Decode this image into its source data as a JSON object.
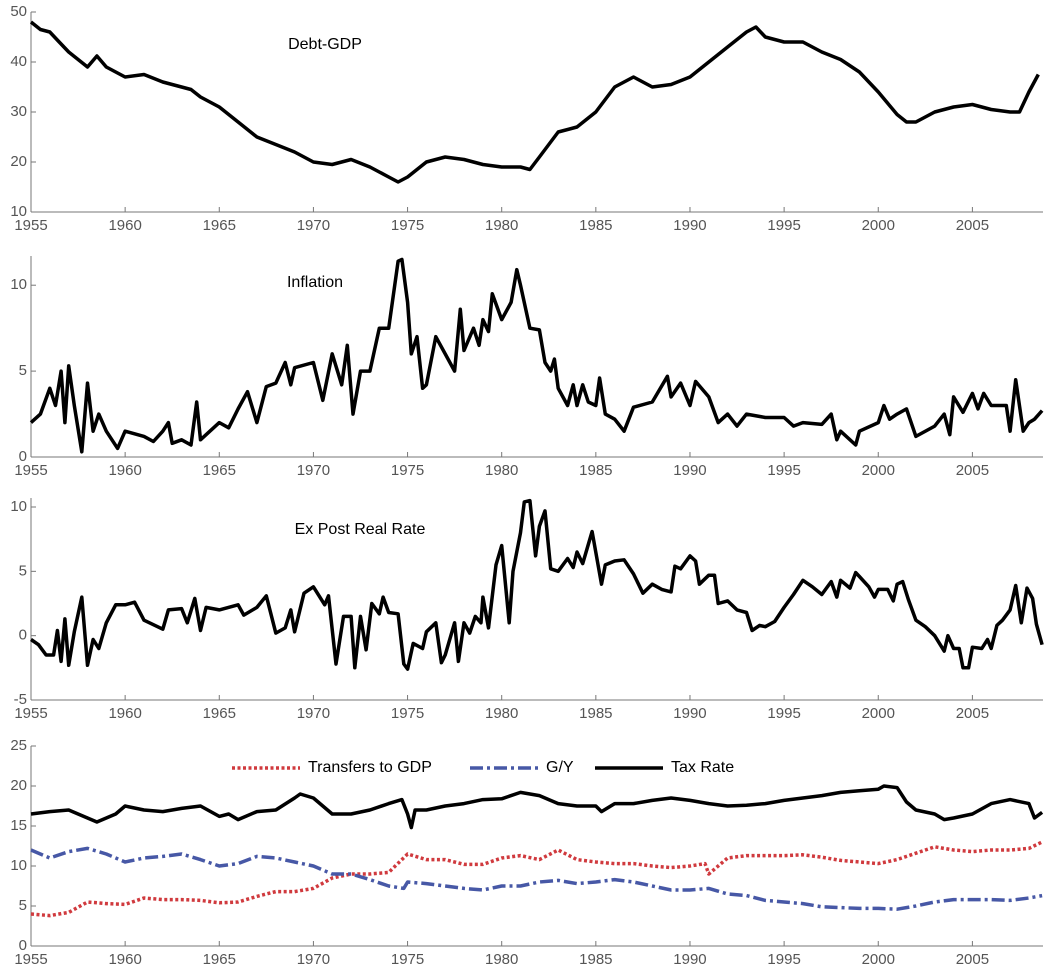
{
  "chart_data": [
    {
      "type": "line",
      "annotation": "Debt-GDP",
      "color": "#000000",
      "x": [
        1955,
        1955.5,
        1956,
        1956.5,
        1957,
        1957.5,
        1958,
        1958.5,
        1959,
        1959.5,
        1960,
        1961,
        1962,
        1963,
        1963.5,
        1964,
        1965,
        1966,
        1967,
        1968,
        1969,
        1970,
        1971,
        1972,
        1973,
        1974,
        1974.5,
        1975,
        1976,
        1977,
        1978,
        1979,
        1980,
        1981,
        1981.5,
        1982,
        1983,
        1984,
        1985,
        1986,
        1987,
        1988,
        1989,
        1990,
        1991,
        1992,
        1993,
        1993.5,
        1994,
        1995,
        1996,
        1997,
        1998,
        1999,
        2000,
        2001,
        2001.5,
        2002,
        2003,
        2004,
        2005,
        2006,
        2007,
        2007.5,
        2008,
        2008.5
      ],
      "values": [
        48,
        46.5,
        46,
        44,
        42,
        40.5,
        39,
        41.2,
        39,
        38,
        37,
        37.5,
        36,
        35,
        34.5,
        33,
        31,
        28,
        25,
        23.5,
        22,
        20,
        19.5,
        20.5,
        19,
        17,
        16,
        17,
        20,
        21,
        20.5,
        19.5,
        19,
        19,
        18.5,
        21,
        26,
        27,
        30,
        35,
        37,
        35,
        35.5,
        37,
        40,
        43,
        46,
        47,
        45,
        44,
        44,
        42,
        40.5,
        38,
        34,
        29.5,
        28,
        28,
        30,
        31,
        31.5,
        30.5,
        30,
        30,
        34,
        37.5
      ],
      "xlim": [
        1955,
        2008.75
      ],
      "xticks": [
        1955,
        1960,
        1965,
        1970,
        1975,
        1980,
        1985,
        1990,
        1995,
        2000,
        2005
      ],
      "ylim": [
        10,
        50
      ],
      "yticks": [
        10,
        20,
        30,
        40,
        50
      ]
    },
    {
      "type": "line",
      "annotation": "Inflation",
      "color": "#000000",
      "x": [
        1955,
        1955.5,
        1956,
        1956.3,
        1956.6,
        1956.8,
        1957,
        1957.3,
        1957.7,
        1958,
        1958.3,
        1958.6,
        1959,
        1959.6,
        1960,
        1961,
        1961.5,
        1962,
        1962.3,
        1962.5,
        1963,
        1963.5,
        1963.8,
        1964,
        1965,
        1965.5,
        1966,
        1966.5,
        1967,
        1967.5,
        1968,
        1968.5,
        1968.8,
        1969,
        1970,
        1970.5,
        1971,
        1971.5,
        1971.8,
        1972.1,
        1972.5,
        1973,
        1973.5,
        1974,
        1974.5,
        1974.7,
        1975,
        1975.2,
        1975.5,
        1975.8,
        1976,
        1976.5,
        1977,
        1977.5,
        1977.8,
        1978,
        1978.5,
        1978.8,
        1979,
        1979.3,
        1979.5,
        1980,
        1980.5,
        1980.8,
        1981,
        1981.5,
        1982,
        1982.3,
        1982.6,
        1982.8,
        1983,
        1983.5,
        1983.8,
        1984,
        1984.3,
        1984.6,
        1985,
        1985.2,
        1985.5,
        1986,
        1986.5,
        1987,
        1988,
        1988.8,
        1989,
        1989.5,
        1990,
        1990.3,
        1991,
        1991.5,
        1992,
        1992.5,
        1993,
        1994,
        1995,
        1995.5,
        1996,
        1997,
        1997.5,
        1997.8,
        1998,
        1998.8,
        1999,
        2000,
        2000.3,
        2000.6,
        2001,
        2001.5,
        2002,
        2003,
        2003.5,
        2003.8,
        2004,
        2004.5,
        2005,
        2005.3,
        2005.6,
        2006,
        2006.8,
        2007,
        2007.3,
        2007.7,
        2008,
        2008.3,
        2008.7
      ],
      "values": [
        2,
        2.5,
        4,
        3,
        5,
        2,
        5.3,
        3,
        0.3,
        4.3,
        1.5,
        2.5,
        1.5,
        0.5,
        1.5,
        1.2,
        0.9,
        1.5,
        2,
        0.8,
        1,
        0.7,
        3.2,
        1,
        2,
        1.7,
        2.8,
        3.8,
        2,
        4.1,
        4.3,
        5.5,
        4.2,
        5.2,
        5.5,
        3.3,
        6,
        4.2,
        6.5,
        2.5,
        5,
        5,
        7.5,
        7.5,
        11.4,
        11.5,
        9,
        6,
        7,
        4,
        4.2,
        7,
        6,
        5,
        8.6,
        6.2,
        7.5,
        6.5,
        8,
        7.3,
        9.5,
        8,
        9,
        10.9,
        10,
        7.5,
        7.4,
        5.5,
        5,
        5.7,
        4,
        3,
        4.2,
        3,
        4.2,
        3.2,
        3,
        4.6,
        2.5,
        2.2,
        1.5,
        2.9,
        3.2,
        4.7,
        3.5,
        4.3,
        3,
        4.4,
        3.5,
        2,
        2.5,
        1.8,
        2.5,
        2.3,
        2.3,
        1.8,
        2,
        1.9,
        2.5,
        1,
        1.5,
        0.7,
        1.5,
        2,
        3,
        2.2,
        2.5,
        2.8,
        1.2,
        1.8,
        2.5,
        1.3,
        3.5,
        2.6,
        3.7,
        2.8,
        3.7,
        3,
        3,
        1.5,
        4.5,
        1.5,
        2,
        2.2,
        2.7
      ],
      "xlim": [
        1955,
        2008.75
      ],
      "xticks": [
        1955,
        1960,
        1965,
        1970,
        1975,
        1980,
        1985,
        1990,
        1995,
        2000,
        2005
      ],
      "ylim": [
        0,
        11.7
      ],
      "yticks": [
        0,
        5,
        10
      ]
    },
    {
      "type": "line",
      "annotation": "Ex Post Real Rate",
      "color": "#000000",
      "x": [
        1955,
        1955.4,
        1955.8,
        1956.2,
        1956.4,
        1956.6,
        1956.8,
        1957,
        1957.3,
        1957.7,
        1958,
        1958.3,
        1958.6,
        1959,
        1959.5,
        1960,
        1960.5,
        1961,
        1962,
        1962.3,
        1963,
        1963.3,
        1963.7,
        1964,
        1964.3,
        1965,
        1966,
        1966.3,
        1967,
        1967.5,
        1968,
        1968.5,
        1968.8,
        1969,
        1969.5,
        1970,
        1970.6,
        1970.8,
        1971.2,
        1971.6,
        1972,
        1972.2,
        1972.5,
        1972.8,
        1973.1,
        1973.5,
        1973.7,
        1974,
        1974.5,
        1974.8,
        1975,
        1975.3,
        1975.8,
        1976,
        1976.5,
        1976.8,
        1977,
        1977.5,
        1977.7,
        1978,
        1978.3,
        1978.6,
        1978.9,
        1979,
        1979.3,
        1979.7,
        1980,
        1980.4,
        1980.6,
        1981,
        1981.2,
        1981.5,
        1981.8,
        1982,
        1982.3,
        1982.6,
        1983,
        1983.5,
        1983.8,
        1984,
        1984.3,
        1984.8,
        1985.3,
        1985.5,
        1986,
        1986.5,
        1987,
        1987.5,
        1988,
        1988.5,
        1989,
        1989.2,
        1989.5,
        1990,
        1990.3,
        1990.5,
        1991,
        1991.3,
        1991.5,
        1992,
        1992.5,
        1993,
        1993.3,
        1993.7,
        1994,
        1994.5,
        1995,
        1995.5,
        1996,
        1996.5,
        1997,
        1997.5,
        1997.8,
        1998,
        1998.5,
        1998.8,
        1999,
        1999.5,
        1999.8,
        2000,
        2000.5,
        2000.8,
        2001,
        2001.3,
        2001.6,
        2002,
        2002.5,
        2003,
        2003.5,
        2003.7,
        2004,
        2004.3,
        2004.5,
        2004.8,
        2005,
        2005.5,
        2005.8,
        2006,
        2006.3,
        2006.6,
        2007,
        2007.3,
        2007.6,
        2007.9,
        2008.2,
        2008.4,
        2008.7
      ],
      "values": [
        -0.3,
        -0.7,
        -1.5,
        -1.5,
        0.4,
        -2,
        1.3,
        -2.3,
        0.3,
        3,
        -2.3,
        -0.3,
        -1,
        1,
        2.4,
        2.4,
        2.6,
        1.2,
        0.5,
        2,
        2.1,
        1,
        2.9,
        0.4,
        2.2,
        2,
        2.4,
        1.6,
        2.2,
        3.1,
        0.2,
        0.6,
        2,
        0.3,
        3.3,
        3.8,
        2.4,
        3.1,
        -2.2,
        1.5,
        1.5,
        -2.5,
        1.5,
        -1.1,
        2.5,
        1.7,
        3,
        1.8,
        1.7,
        -2.2,
        -2.6,
        -0.6,
        -1,
        0.3,
        1,
        -2.1,
        -1.5,
        1,
        -2,
        1,
        0.2,
        1.5,
        1,
        3,
        0.6,
        5.5,
        7,
        1,
        5,
        8,
        10.4,
        10.5,
        6.2,
        8.5,
        9.7,
        5.2,
        5,
        6,
        5.3,
        6.5,
        5.6,
        8.1,
        4,
        5.5,
        5.8,
        5.9,
        4.8,
        3.3,
        4,
        3.6,
        3.4,
        5.4,
        5.2,
        6.2,
        5.8,
        4,
        4.7,
        4.7,
        2.5,
        2.7,
        2,
        1.8,
        0.4,
        0.8,
        0.7,
        1.1,
        2.2,
        3.2,
        4.3,
        3.8,
        3.2,
        4.2,
        3,
        4.3,
        3.7,
        4.9,
        4.6,
        3.8,
        3,
        3.6,
        3.6,
        2.7,
        4,
        4.2,
        2.8,
        1.2,
        0.7,
        0,
        -1.2,
        0,
        -1,
        -1,
        -2.5,
        -2.5,
        -0.9,
        -1,
        -0.3,
        -1,
        0.8,
        1.2,
        2,
        3.9,
        1,
        3.7,
        2.9,
        0.9,
        -0.7
      ],
      "xlim": [
        1955,
        2008.75
      ],
      "xticks": [
        1955,
        1960,
        1965,
        1970,
        1975,
        1980,
        1985,
        1990,
        1995,
        2000,
        2005
      ],
      "ylim": [
        -5,
        10.7
      ],
      "yticks": [
        -5,
        0,
        5,
        10
      ]
    },
    {
      "type": "line",
      "legend": "top",
      "series": [
        {
          "name": "Transfers to GDP",
          "color": "#d03a3e",
          "dash": "dotted",
          "x": [
            1955,
            1956,
            1957,
            1958,
            1959,
            1960,
            1961,
            1962,
            1963,
            1964,
            1965,
            1966,
            1967,
            1968,
            1969,
            1970,
            1971,
            1972,
            1973,
            1974,
            1975,
            1976,
            1977,
            1978,
            1979,
            1980,
            1981,
            1982,
            1983,
            1984,
            1985,
            1986,
            1987,
            1988,
            1989,
            1990,
            1990.8,
            1991,
            1992,
            1993,
            1994,
            1995,
            1996,
            1997,
            1998,
            1999,
            2000,
            2001,
            2002,
            2003,
            2004,
            2005,
            2006,
            2007,
            2008,
            2008.7
          ],
          "values": [
            4,
            3.8,
            4.2,
            5.5,
            5.3,
            5.2,
            6,
            5.8,
            5.8,
            5.7,
            5.4,
            5.5,
            6.2,
            6.8,
            6.8,
            7.2,
            8.5,
            9,
            9,
            9.2,
            11.5,
            10.8,
            10.8,
            10.2,
            10.2,
            11,
            11.3,
            10.8,
            12,
            10.8,
            10.5,
            10.3,
            10.3,
            10,
            9.8,
            10,
            10.3,
            9,
            11,
            11.3,
            11.3,
            11.3,
            11.4,
            11.1,
            10.7,
            10.5,
            10.3,
            10.8,
            11.6,
            12.4,
            12,
            11.8,
            12,
            12,
            12.2,
            13
          ]
        },
        {
          "name": "G/Y",
          "color": "#4758a6",
          "dash": "dashdot",
          "x": [
            1955,
            1956,
            1957,
            1958,
            1959,
            1960,
            1961,
            1962,
            1963,
            1964,
            1965,
            1966,
            1967,
            1968,
            1969,
            1970,
            1971,
            1972,
            1973,
            1974,
            1974.8,
            1975,
            1976,
            1977,
            1978,
            1979,
            1980,
            1981,
            1982,
            1983,
            1984,
            1985,
            1986,
            1987,
            1988,
            1989,
            1990,
            1991,
            1992,
            1993,
            1994,
            1995,
            1996,
            1997,
            1998,
            1999,
            2000,
            2001,
            2002,
            2003,
            2004,
            2005,
            2006,
            2007,
            2008,
            2008.7
          ],
          "values": [
            12,
            11,
            11.8,
            12.2,
            11.5,
            10.5,
            11,
            11.2,
            11.5,
            10.8,
            10,
            10.3,
            11.2,
            11,
            10.5,
            10,
            9,
            9,
            8.3,
            7.5,
            7.2,
            8,
            7.8,
            7.5,
            7.2,
            7,
            7.5,
            7.5,
            8,
            8.2,
            7.8,
            8,
            8.3,
            8,
            7.5,
            7,
            7,
            7.2,
            6.5,
            6.3,
            5.7,
            5.5,
            5.3,
            4.9,
            4.8,
            4.7,
            4.7,
            4.6,
            5,
            5.5,
            5.8,
            5.8,
            5.8,
            5.7,
            6,
            6.3
          ]
        },
        {
          "name": "Tax Rate",
          "color": "#000000",
          "dash": "solid",
          "x": [
            1955,
            1956,
            1957,
            1958,
            1958.5,
            1959,
            1959.5,
            1960,
            1961,
            1962,
            1963,
            1964,
            1965,
            1965.5,
            1966,
            1967,
            1968,
            1969,
            1969.3,
            1970,
            1971,
            1972,
            1973,
            1974,
            1974.7,
            1975,
            1975.2,
            1975.4,
            1976,
            1977,
            1978,
            1979,
            1980,
            1981,
            1982,
            1983,
            1984,
            1985,
            1985.3,
            1986,
            1987,
            1988,
            1989,
            1990,
            1991,
            1992,
            1993,
            1994,
            1995,
            1996,
            1997,
            1998,
            1999,
            2000,
            2000.3,
            2001,
            2001.5,
            2002,
            2003,
            2003.5,
            2004,
            2005,
            2006,
            2007,
            2008,
            2008.3,
            2008.7
          ],
          "values": [
            16.5,
            16.8,
            17,
            16,
            15.5,
            16,
            16.5,
            17.5,
            17,
            16.8,
            17.2,
            17.5,
            16.2,
            16.5,
            15.8,
            16.8,
            17,
            18.5,
            19,
            18.5,
            16.5,
            16.5,
            17,
            17.8,
            18.3,
            16.5,
            14.8,
            17,
            17,
            17.5,
            17.8,
            18.3,
            18.4,
            19.2,
            18.8,
            17.8,
            17.5,
            17.5,
            16.8,
            17.8,
            17.8,
            18.2,
            18.5,
            18.2,
            17.8,
            17.5,
            17.6,
            17.8,
            18.2,
            18.5,
            18.8,
            19.2,
            19.4,
            19.6,
            20,
            19.8,
            18,
            17,
            16.5,
            15.8,
            16,
            16.5,
            17.8,
            18.3,
            17.8,
            16,
            16.7
          ]
        }
      ],
      "xlim": [
        1955,
        2008.75
      ],
      "xticks": [
        1955,
        1960,
        1965,
        1970,
        1975,
        1980,
        1985,
        1990,
        1995,
        2000,
        2005
      ],
      "ylim": [
        0,
        25
      ],
      "yticks": [
        0,
        5,
        10,
        15,
        20,
        25
      ]
    }
  ]
}
